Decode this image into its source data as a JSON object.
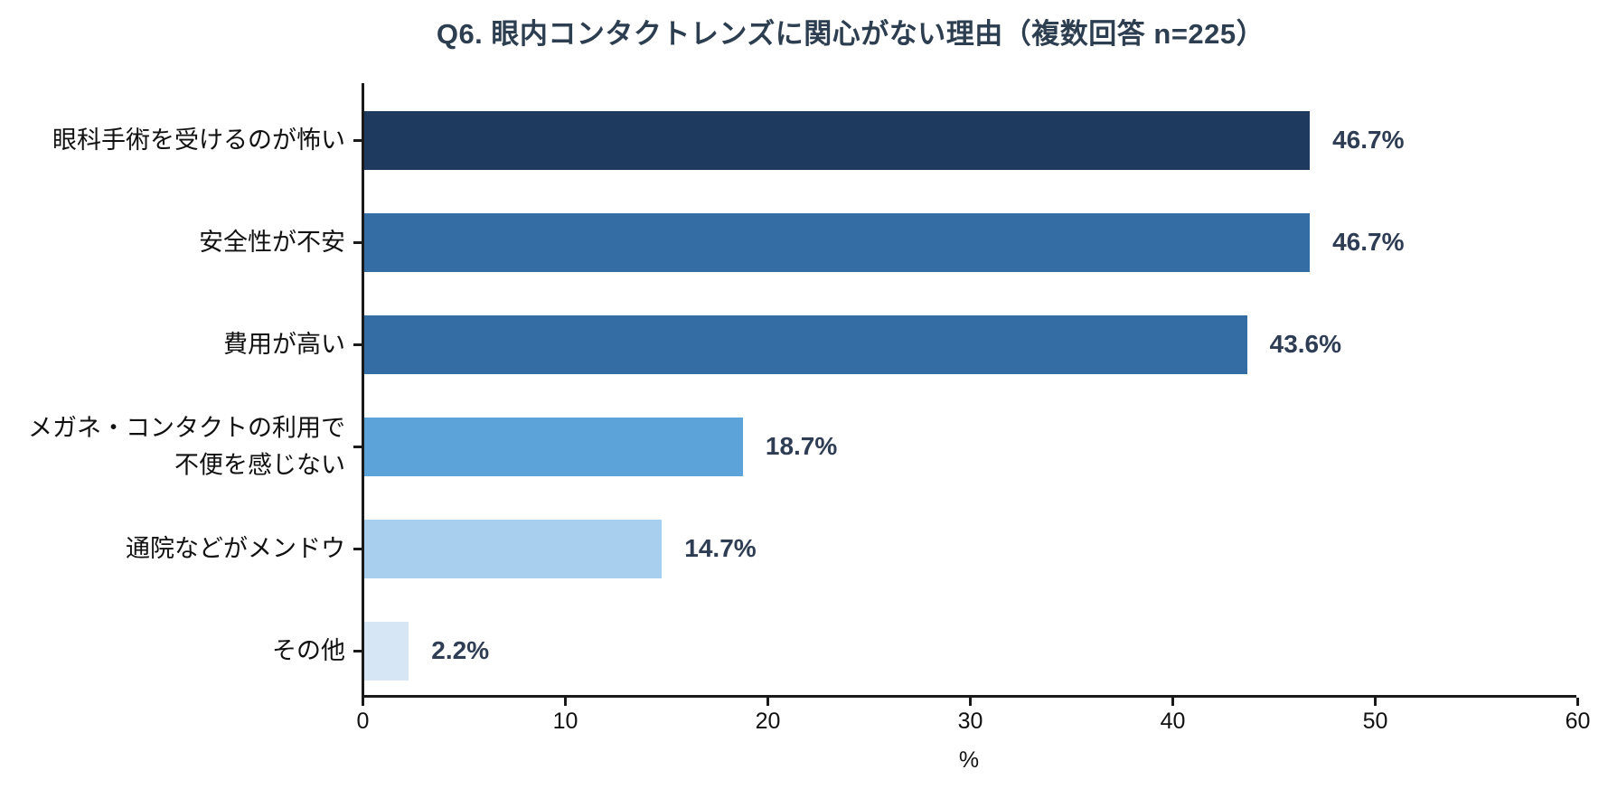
{
  "chart_data": {
    "type": "bar",
    "orientation": "horizontal",
    "title": "Q6. 眼内コンタクトレンズに関心がない理由（複数回答 n=225）",
    "categories": [
      "眼科手術を受けるのが怖い",
      "安全性が不安",
      "費用が高い",
      "メガネ・コンタクトの利用で\n不便を感じない",
      "通院などがメンドウ",
      "その他"
    ],
    "values": [
      46.7,
      46.7,
      43.6,
      18.7,
      14.7,
      2.2
    ],
    "value_labels": [
      "46.7%",
      "46.7%",
      "43.6%",
      "18.7%",
      "14.7%",
      "2.2%"
    ],
    "bar_colors": [
      "#1e3a5f",
      "#346da4",
      "#346da4",
      "#5ba3d9",
      "#a9cfee",
      "#d6e6f5"
    ],
    "xlabel": "%",
    "xlim": [
      0,
      60
    ],
    "x_ticks": [
      0,
      10,
      20,
      30,
      40,
      50,
      60
    ],
    "grid": false,
    "legend": false,
    "colors": {
      "title": "#2d3e50",
      "value_label": "#2e3d54",
      "axis": "#1a1a1a",
      "tick_label": "#111111"
    }
  }
}
